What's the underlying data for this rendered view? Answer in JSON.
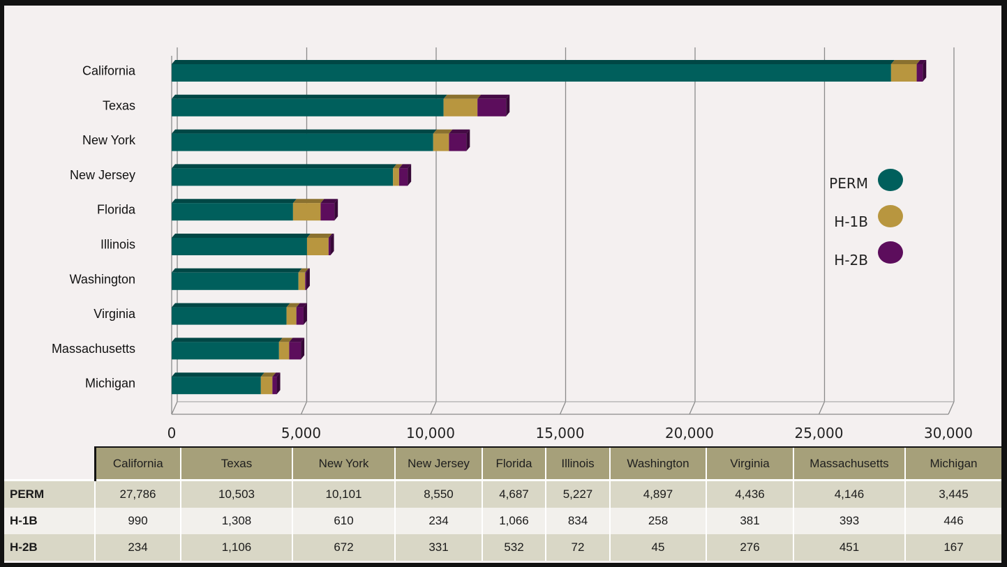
{
  "chart_data": {
    "type": "bar",
    "orientation": "horizontal",
    "stacked": true,
    "categories": [
      "California",
      "Texas",
      "New York",
      "New Jersey",
      "Florida",
      "Illinois",
      "Washington",
      "Virginia",
      "Massachusetts",
      "Michigan"
    ],
    "series": [
      {
        "name": "PERM",
        "color": "#005f5c",
        "values": [
          27786,
          10503,
          10101,
          8550,
          4687,
          5227,
          4897,
          4436,
          4146,
          3445
        ]
      },
      {
        "name": "H-1B",
        "color": "#b8963f",
        "values": [
          990,
          1308,
          610,
          234,
          1066,
          834,
          258,
          381,
          393,
          446
        ]
      },
      {
        "name": "H-2B",
        "color": "#5c0d5c",
        "values": [
          234,
          1106,
          672,
          331,
          532,
          72,
          45,
          276,
          451,
          167
        ]
      }
    ],
    "xlim": [
      0,
      30000
    ],
    "xticks": [
      "0",
      "5,000",
      "10,000",
      "15,000",
      "20,000",
      "25,000",
      "30,000"
    ],
    "grid": true,
    "legend": "right"
  },
  "table": {
    "headers": [
      "California",
      "Texas",
      "New York",
      "New Jersey",
      "Florida",
      "Illinois",
      "Washington",
      "Virginia",
      "Massachusetts",
      "Michigan"
    ],
    "rows": [
      {
        "label": "PERM",
        "cells": [
          "27,786",
          "10,503",
          "10,101",
          "8,550",
          "4,687",
          "5,227",
          "4,897",
          "4,436",
          "4,146",
          "3,445"
        ]
      },
      {
        "label": "H-1B",
        "cells": [
          "990",
          "1,308",
          "610",
          "234",
          "1,066",
          "834",
          "258",
          "381",
          "393",
          "446"
        ]
      },
      {
        "label": "H-2B",
        "cells": [
          "234",
          "1,106",
          "672",
          "331",
          "532",
          "72",
          "45",
          "276",
          "451",
          "167"
        ]
      }
    ]
  }
}
